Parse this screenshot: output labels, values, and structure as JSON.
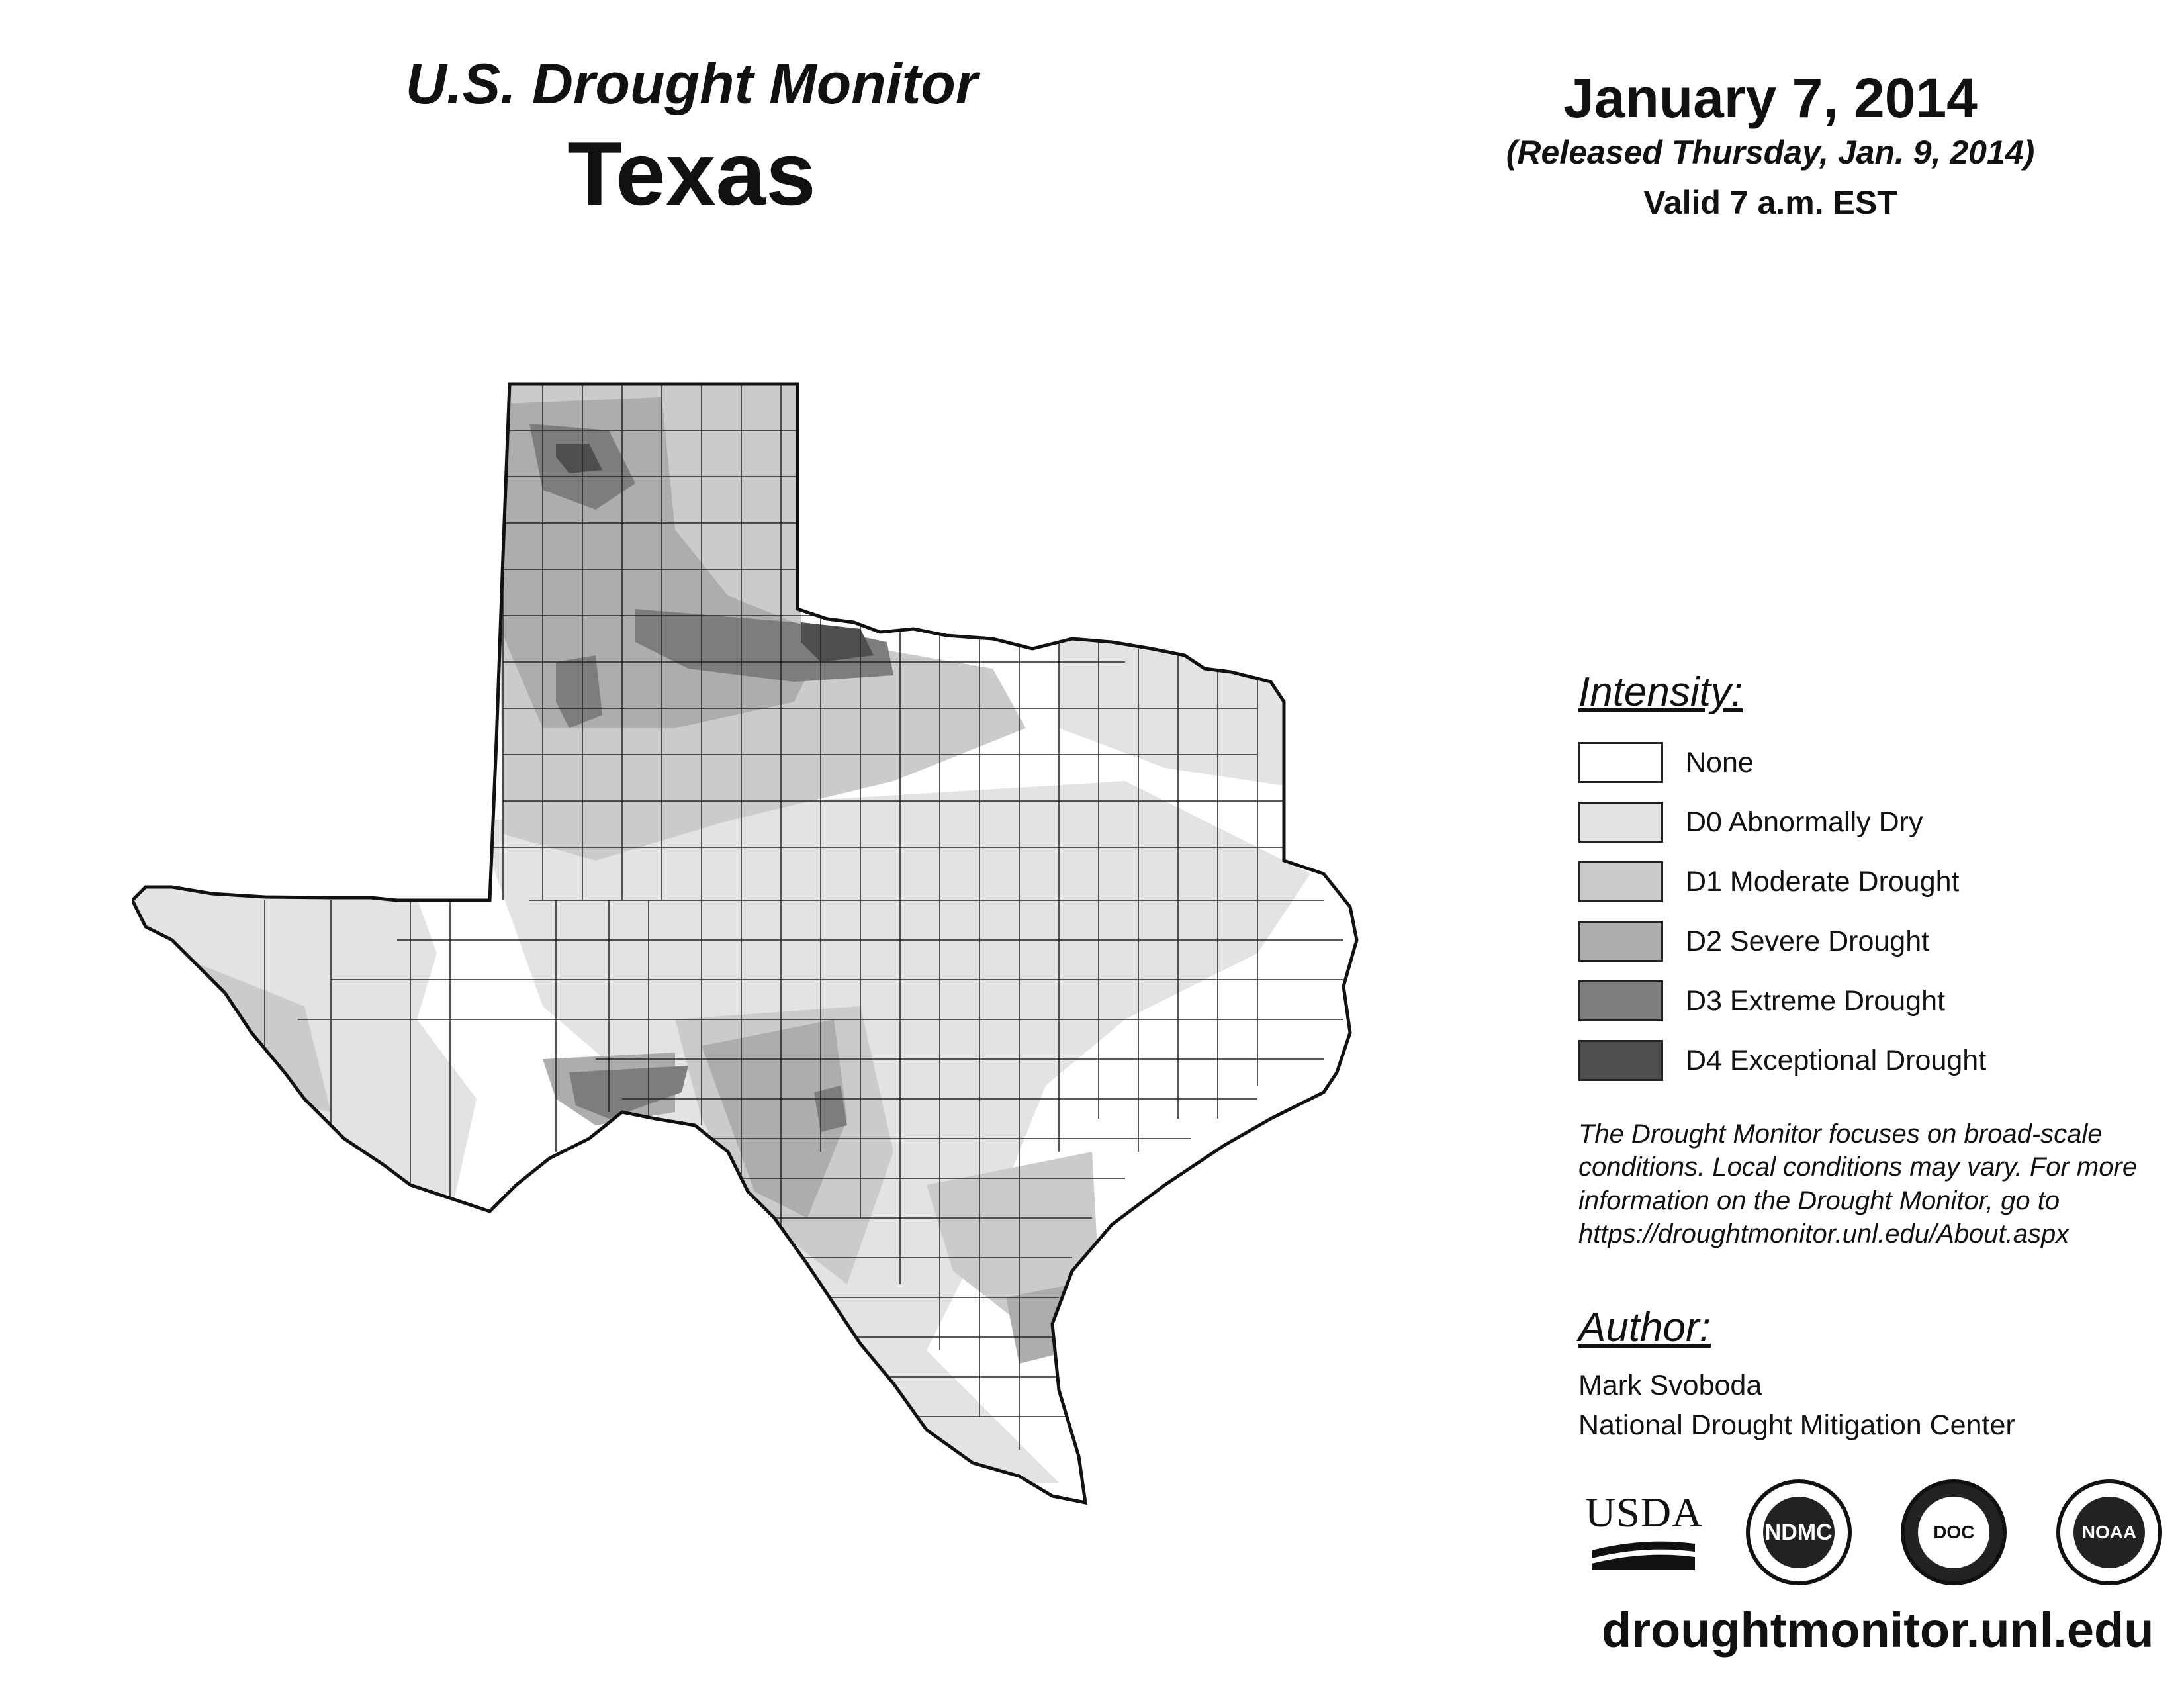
{
  "header": {
    "subtitle": "U.S. Drought Monitor",
    "state": "Texas",
    "date": "January 7, 2014",
    "released": "(Released Thursday, Jan. 9, 2014)",
    "valid": "Valid 7 a.m. EST"
  },
  "legend": {
    "title": "Intensity:",
    "items": [
      {
        "label": "None",
        "color": "#ffffff"
      },
      {
        "label": "D0 Abnormally Dry",
        "color": "#e3e3e3"
      },
      {
        "label": "D1 Moderate Drought",
        "color": "#cbcbcb"
      },
      {
        "label": "D2 Severe Drought",
        "color": "#adadad"
      },
      {
        "label": "D3 Extreme Drought",
        "color": "#7d7d7d"
      },
      {
        "label": "D4 Exceptional Drought",
        "color": "#4e4e4e"
      }
    ]
  },
  "note": {
    "lines": [
      "The Drought Monitor focuses on broad-scale",
      "conditions. Local conditions may vary. For more",
      "information on the Drought Monitor, go to",
      "https://droughtmonitor.unl.edu/About.aspx"
    ]
  },
  "author": {
    "title": "Author:",
    "name": "Mark Svoboda",
    "org": "National Drought Mitigation Center"
  },
  "logos": {
    "usda": "USDA",
    "ndmc": "NDMC",
    "commerce": "DOC",
    "noaa": "NOAA"
  },
  "website": "droughtmonitor.unl.edu",
  "colors": {
    "none": "#ffffff",
    "d0": "#e3e3e3",
    "d1": "#cbcbcb",
    "d2": "#adadad",
    "d3": "#7d7d7d",
    "d4": "#4e4e4e",
    "border": "#111111"
  }
}
